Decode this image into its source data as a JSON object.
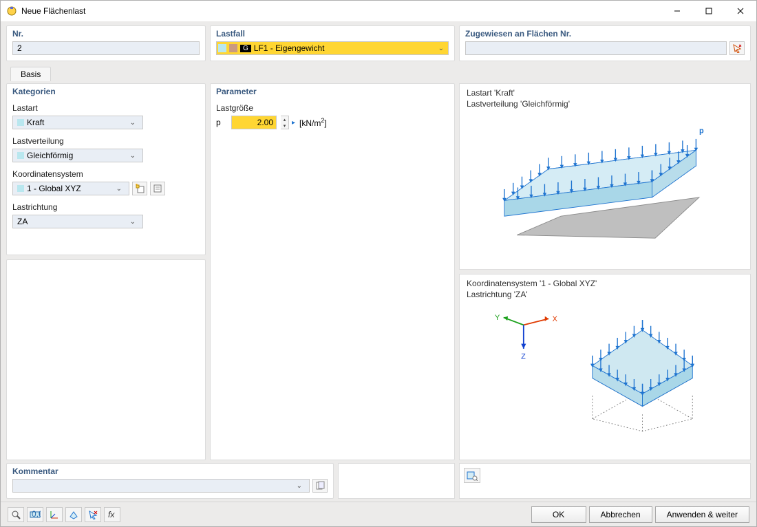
{
  "window": {
    "title": "Neue Flächenlast"
  },
  "top": {
    "nr": {
      "label": "Nr.",
      "value": "2"
    },
    "lastfall": {
      "label": "Lastfall",
      "swatch_colors": [
        "#b9e7ef",
        "#c99a80"
      ],
      "g_badge": "G",
      "text": "LF1 - Eigengewicht"
    },
    "zug": {
      "label": "Zugewiesen an Flächen Nr.",
      "value": ""
    }
  },
  "tabs": {
    "basis": "Basis"
  },
  "kategorien": {
    "legend": "Kategorien",
    "lastart": {
      "label": "Lastart",
      "value": "Kraft"
    },
    "lastverteilung": {
      "label": "Lastverteilung",
      "value": "Gleichförmig"
    },
    "koord": {
      "label": "Koordinatensystem",
      "value": "1 - Global XYZ"
    },
    "lastrichtung": {
      "label": "Lastrichtung",
      "value": "ZA"
    }
  },
  "parameter": {
    "legend": "Parameter",
    "lastgroesse": "Lastgröße",
    "p_symbol": "p",
    "p_value": "2.00",
    "unit_prefix": "[kN/m",
    "unit_sup": "2",
    "unit_suffix": "]",
    "spin_right": "▸"
  },
  "preview1": {
    "line1": "Lastart 'Kraft'",
    "line2": "Lastverteilung 'Gleichförmig'",
    "p_label": "p",
    "colors": {
      "top_fill": "#d5ecf5",
      "top_stroke": "#1f74d0",
      "arrow": "#1f74d0",
      "shadow_fill": "#bfbfbf",
      "shadow_stroke": "#8a8a8a"
    }
  },
  "preview2": {
    "line1": "Koordinatensystem '1 - Global XYZ'",
    "line2": "Lastrichtung 'ZA'",
    "axis": {
      "x": "X",
      "y": "Y",
      "z": "Z",
      "x_color": "#e03a00",
      "y_color": "#1aa01a",
      "z_color": "#1040d0"
    },
    "colors": {
      "diamond_top_fill": "#cfe8f1",
      "diamond_mid_fill": "#a3b9c4",
      "stroke": "#1f74d0",
      "arrow": "#1f74d0",
      "proj_stroke": "#777"
    }
  },
  "kommentar": {
    "legend": "Kommentar",
    "value": ""
  },
  "footer": {
    "ok": "OK",
    "abbrechen": "Abbrechen",
    "anwenden": "Anwenden & weiter"
  }
}
